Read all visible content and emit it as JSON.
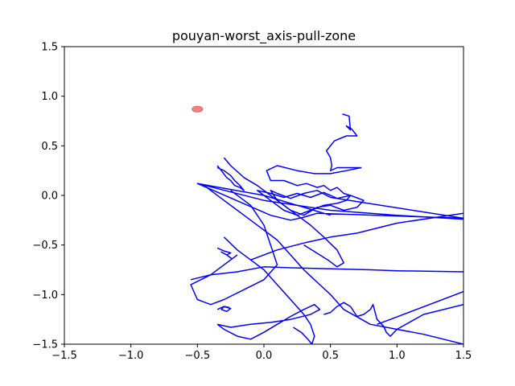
{
  "chart_data": {
    "type": "line",
    "title": "pouyan-worst_axis-pull-zone",
    "xlabel": "",
    "ylabel": "",
    "xlim": [
      -1.5,
      1.5
    ],
    "ylim": [
      -1.5,
      1.5
    ],
    "grid": false,
    "x_ticks": [
      -1.5,
      -1.0,
      -0.5,
      0.0,
      0.5,
      1.0,
      1.5
    ],
    "x_tick_labels": [
      "−1.5",
      "−1.0",
      "−0.5",
      "0.0",
      "0.5",
      "1.0",
      "1.5"
    ],
    "y_ticks": [
      -1.5,
      -1.0,
      -0.5,
      0.0,
      0.5,
      1.0,
      1.5
    ],
    "y_tick_labels": [
      "−1.5",
      "−1.0",
      "−0.5",
      "0.0",
      "0.5",
      "1.0",
      "1.5"
    ],
    "colors": {
      "trajectory": "#0000ff",
      "target": "#f08080"
    },
    "series": [
      {
        "kind": "trajectory",
        "x": [
          0.59,
          0.64,
          0.65,
          0.62,
          0.66,
          0.7,
          0.62,
          0.53,
          0.47,
          0.5,
          0.51,
          0.5,
          0.55,
          0.73,
          0.62,
          0.5,
          0.38,
          0.25,
          0.1,
          0.02,
          0.05,
          0.15,
          0.25,
          0.32,
          0.4,
          0.45,
          0.5,
          0.55,
          0.6,
          0.65,
          0.62,
          0.55,
          0.45,
          0.35,
          0.25,
          0.15,
          0.05,
          0.0,
          -0.05,
          0.05,
          0.15,
          0.25,
          0.35,
          0.45,
          0.55,
          0.65,
          0.75,
          0.7,
          0.6,
          0.5,
          0.4,
          0.3,
          0.2,
          0.1,
          0.05,
          0.1,
          0.2,
          0.3,
          0.4,
          0.5,
          1.5,
          0.4,
          0.3,
          0.2,
          0.05,
          -0.5,
          0.0,
          0.25,
          0.5
        ],
        "y": [
          0.82,
          0.8,
          0.66,
          0.7,
          0.67,
          0.6,
          0.6,
          0.55,
          0.45,
          0.38,
          0.3,
          0.25,
          0.28,
          0.28,
          0.25,
          0.22,
          0.22,
          0.25,
          0.3,
          0.25,
          0.15,
          0.15,
          0.1,
          0.12,
          0.08,
          0.1,
          0.05,
          0.08,
          0.02,
          0.0,
          -0.05,
          -0.08,
          -0.1,
          -0.15,
          -0.2,
          -0.15,
          -0.05,
          0.0,
          0.05,
          0.02,
          -0.02,
          0.02,
          -0.02,
          0.03,
          -0.03,
          0.0,
          -0.05,
          -0.12,
          -0.15,
          -0.1,
          -0.12,
          -0.2,
          -0.15,
          -0.05,
          0.05,
          0.02,
          -0.03,
          0.02,
          0.05,
          -0.02,
          -0.23,
          -0.18,
          -0.22,
          -0.25,
          -0.2,
          0.12,
          0.0,
          -0.1,
          -0.2
        ]
      },
      {
        "kind": "trajectory",
        "x": [
          -0.5,
          0.0,
          0.5,
          1.0,
          1.5
        ],
        "y": [
          0.12,
          -0.05,
          -0.15,
          -0.2,
          -0.24
        ]
      },
      {
        "kind": "trajectory",
        "x": [
          -0.45,
          -0.3,
          -0.1,
          0.1,
          0.2,
          0.3,
          0.42,
          0.5,
          0.6,
          0.8,
          1.2,
          1.5
        ],
        "y": [
          0.1,
          -0.05,
          -0.25,
          -0.45,
          -0.6,
          -0.75,
          -0.9,
          -1.0,
          -1.15,
          -1.3,
          -1.4,
          -1.5
        ]
      },
      {
        "kind": "trajectory",
        "x": [
          -0.3,
          -0.25,
          -0.15,
          -0.05,
          0.05,
          0.15,
          0.25,
          0.35,
          0.45,
          0.55,
          0.6,
          0.55,
          0.48,
          0.42,
          0.36,
          0.3
        ],
        "y": [
          0.38,
          0.3,
          0.18,
          0.1,
          0.0,
          -0.1,
          -0.2,
          -0.3,
          -0.42,
          -0.55,
          -0.68,
          -0.72,
          -0.65,
          -0.6,
          -0.55,
          -0.5
        ]
      },
      {
        "kind": "trajectory",
        "x": [
          -0.25,
          -0.1,
          0.0,
          0.05,
          0.1,
          0.0,
          -0.15,
          -0.3,
          -0.4,
          -0.5,
          -0.55,
          -0.4,
          -0.3,
          -0.2
        ],
        "y": [
          0.05,
          -0.1,
          -0.3,
          -0.5,
          -0.7,
          -0.85,
          -0.95,
          -1.05,
          -1.1,
          -1.05,
          -0.9,
          -0.8,
          -0.7,
          -0.6
        ]
      },
      {
        "kind": "trajectory",
        "x": [
          -0.3,
          -0.2,
          -0.1,
          0.0,
          0.1,
          0.2,
          0.3,
          0.35,
          0.38,
          0.36,
          0.33,
          0.28,
          0.22
        ],
        "y": [
          -0.42,
          -0.55,
          -0.65,
          -0.75,
          -0.9,
          -1.05,
          -1.2,
          -1.3,
          -1.42,
          -1.5,
          -1.45,
          -1.38,
          -1.33
        ]
      },
      {
        "kind": "trajectory",
        "x": [
          -0.55,
          -0.4,
          -0.2,
          0.0,
          0.2,
          0.5,
          0.8,
          1.0,
          1.5
        ],
        "y": [
          -0.85,
          -0.8,
          -0.77,
          -0.72,
          -0.73,
          -0.74,
          -0.75,
          -0.76,
          -0.77
        ]
      },
      {
        "kind": "trajectory",
        "x": [
          -0.1,
          0.1,
          0.3,
          0.5,
          0.7,
          1.0,
          1.5
        ],
        "y": [
          -0.65,
          -0.55,
          -0.48,
          -0.42,
          -0.38,
          -0.28,
          -0.18
        ]
      },
      {
        "kind": "trajectory",
        "x": [
          -0.35,
          -0.25,
          -0.1,
          0.05,
          0.2,
          0.35,
          0.42,
          0.38,
          0.3,
          0.2,
          0.1,
          0.0,
          -0.1,
          -0.2,
          -0.3,
          -0.35
        ],
        "y": [
          -1.3,
          -1.33,
          -1.3,
          -1.28,
          -1.25,
          -1.2,
          -1.15,
          -1.1,
          -1.15,
          -1.22,
          -1.3,
          -1.38,
          -1.45,
          -1.42,
          -1.35,
          -1.3
        ]
      },
      {
        "kind": "trajectory",
        "x": [
          0.45,
          0.5,
          0.55,
          0.6,
          0.65,
          0.68,
          0.7,
          0.75,
          0.8,
          0.82,
          0.85,
          0.9,
          0.92,
          0.95,
          1.0,
          1.2,
          1.5
        ],
        "y": [
          -1.2,
          -1.18,
          -1.12,
          -1.08,
          -1.12,
          -1.18,
          -1.22,
          -1.2,
          -1.15,
          -1.1,
          -1.25,
          -1.32,
          -1.38,
          -1.42,
          -1.35,
          -1.2,
          -1.1
        ]
      },
      {
        "kind": "trajectory",
        "x": [
          0.85,
          0.95,
          1.5
        ],
        "y": [
          -1.3,
          -1.25,
          -0.97
        ]
      },
      {
        "kind": "trajectory",
        "x": [
          -0.35,
          -0.3,
          -0.25,
          -0.28,
          -0.32,
          -0.3,
          -0.26
        ],
        "y": [
          -1.15,
          -1.12,
          -1.14,
          -1.17,
          -1.15,
          -1.12,
          -1.13
        ]
      },
      {
        "kind": "trajectory",
        "x": [
          -0.35,
          -0.3,
          -0.25,
          -0.28,
          -0.32,
          -0.28,
          -0.24
        ],
        "y": [
          -0.53,
          -0.56,
          -0.58,
          -0.6,
          -0.57,
          -0.6,
          -0.64
        ]
      },
      {
        "kind": "trajectory",
        "x": [
          -0.35,
          -0.32,
          -0.28,
          -0.25,
          -0.22,
          -0.18,
          -0.15,
          -0.18,
          -0.22,
          -0.25,
          -0.3,
          -0.35
        ],
        "y": [
          0.3,
          0.25,
          0.18,
          0.15,
          0.1,
          0.08,
          0.05,
          0.1,
          0.15,
          0.2,
          0.25,
          0.28
        ]
      }
    ],
    "markers": [
      {
        "kind": "target",
        "x": -0.5,
        "y": 0.87,
        "rx": 0.04,
        "ry": 0.04
      }
    ]
  }
}
